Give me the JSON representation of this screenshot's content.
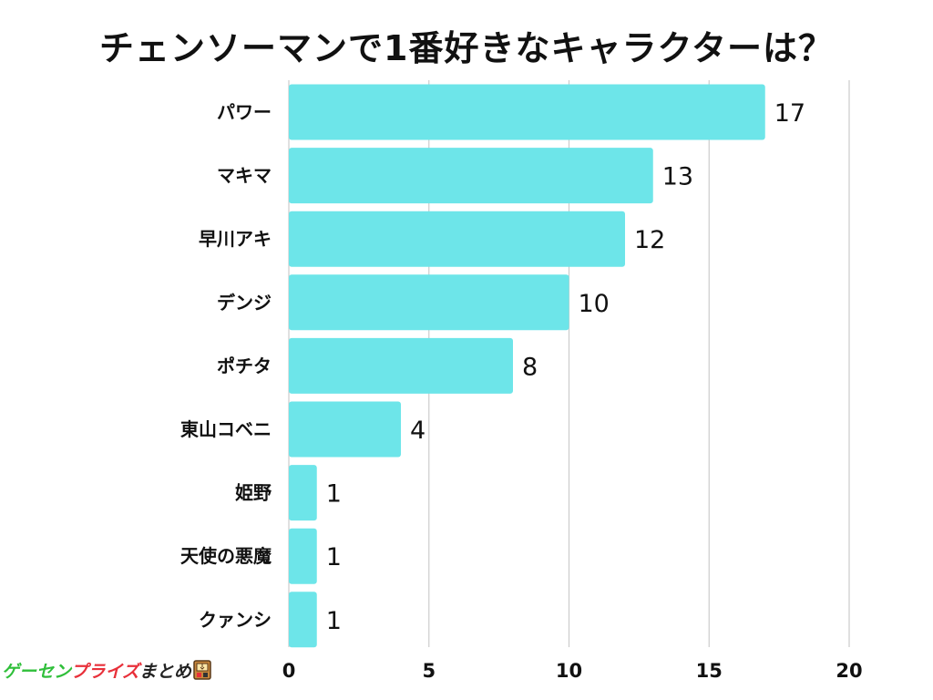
{
  "chart_data": {
    "type": "bar",
    "orientation": "horizontal",
    "title": "チェンソーマンで1番好きなキャラクターは？",
    "categories": [
      "パワー",
      "マキマ",
      "早川アキ",
      "デンジ",
      "ポチタ",
      "東山コベニ",
      "姫野",
      "天使の悪魔",
      "クァンシ"
    ],
    "values": [
      17,
      13,
      12,
      10,
      8,
      4,
      1,
      1,
      1
    ],
    "value_labels": [
      "17",
      "13",
      "12",
      "10",
      "8",
      "4",
      "1",
      "1",
      "1"
    ],
    "xlim": [
      0,
      20
    ],
    "xticks": [
      0,
      5,
      10,
      15,
      20
    ],
    "xtick_labels": [
      "0",
      "5",
      "10",
      "15",
      "20"
    ],
    "grid": true,
    "xlabel": "",
    "ylabel": ""
  },
  "colors": {
    "bar": "#6de5e9",
    "grid": "#cccccc"
  },
  "watermark": {
    "text_part1": "ゲーセン",
    "text_part2": "プライズ",
    "text_part3": "まとめ",
    "icon": "claw-machine-icon"
  }
}
